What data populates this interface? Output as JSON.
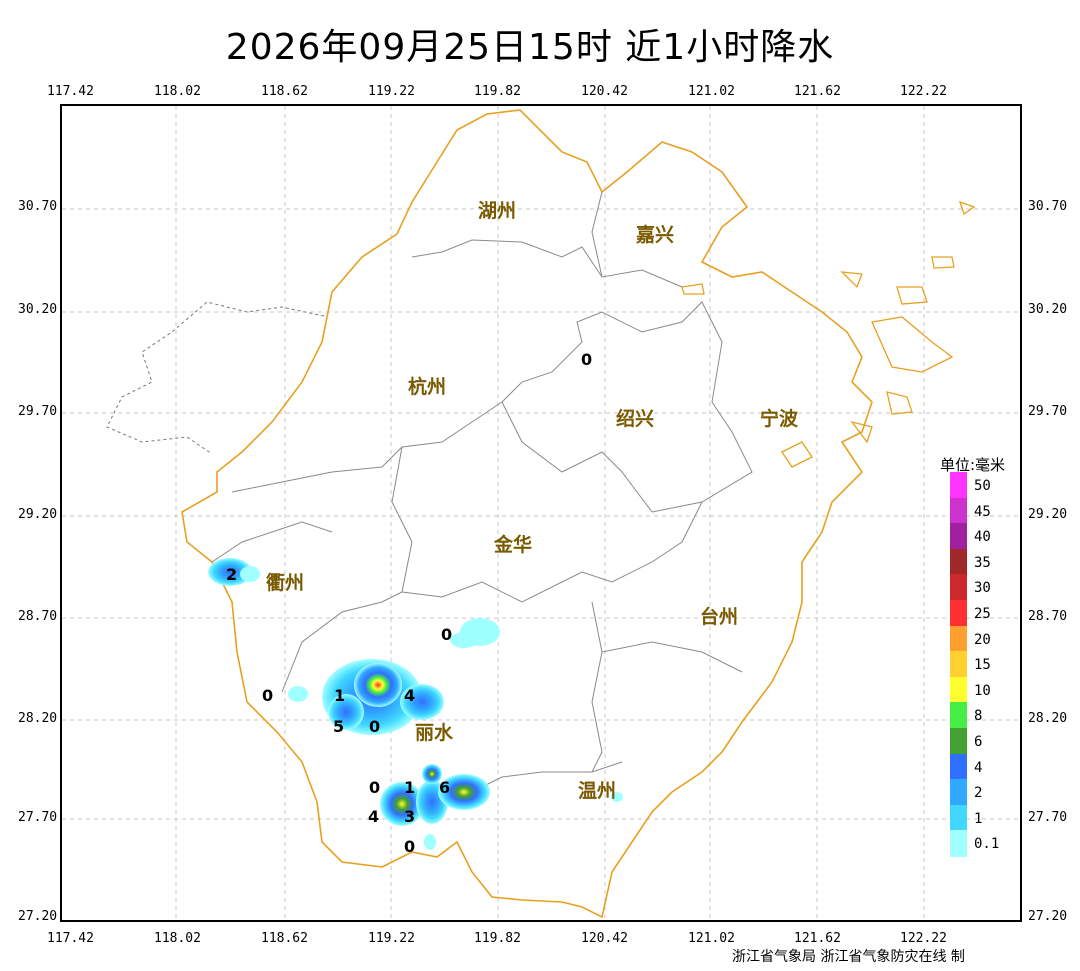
{
  "title": "2026年09月25日15时  近1小时降水",
  "lon_ticks": [
    "117.42",
    "118.02",
    "118.62",
    "119.22",
    "119.82",
    "120.42",
    "121.02",
    "121.62",
    "122.22"
  ],
  "lat_ticks": [
    "30.70",
    "30.20",
    "29.70",
    "29.20",
    "28.70",
    "28.20",
    "27.70",
    "27.20"
  ],
  "cities": [
    "湖州",
    "嘉兴",
    "杭州",
    "绍兴",
    "宁波",
    "衢州",
    "金华",
    "台州",
    "丽水",
    "温州"
  ],
  "values": [
    "0",
    "2",
    "0",
    "0",
    "1",
    "4",
    "5",
    "0",
    "0",
    "1",
    "6",
    "4",
    "3",
    "0"
  ],
  "legend": {
    "title": "单位:毫米",
    "levels": [
      {
        "label": "50",
        "color": "#ff33ff"
      },
      {
        "label": "45",
        "color": "#cc33cc"
      },
      {
        "label": "40",
        "color": "#a020a0"
      },
      {
        "label": "35",
        "color": "#a02828"
      },
      {
        "label": "30",
        "color": "#cc2a2a"
      },
      {
        "label": "25",
        "color": "#ff3030"
      },
      {
        "label": "20",
        "color": "#ff9f30"
      },
      {
        "label": "15",
        "color": "#ffd030"
      },
      {
        "label": "10",
        "color": "#ffff30"
      },
      {
        "label": "8",
        "color": "#44ee44"
      },
      {
        "label": "6",
        "color": "#44a030"
      },
      {
        "label": "4",
        "color": "#3070ff"
      },
      {
        "label": "2",
        "color": "#30a8ff"
      },
      {
        "label": "1",
        "color": "#40d8ff"
      },
      {
        "label": "0.1",
        "color": "#a0ffff"
      }
    ]
  },
  "credit": "浙江省气象局 浙江省气象防灾在线 制"
}
